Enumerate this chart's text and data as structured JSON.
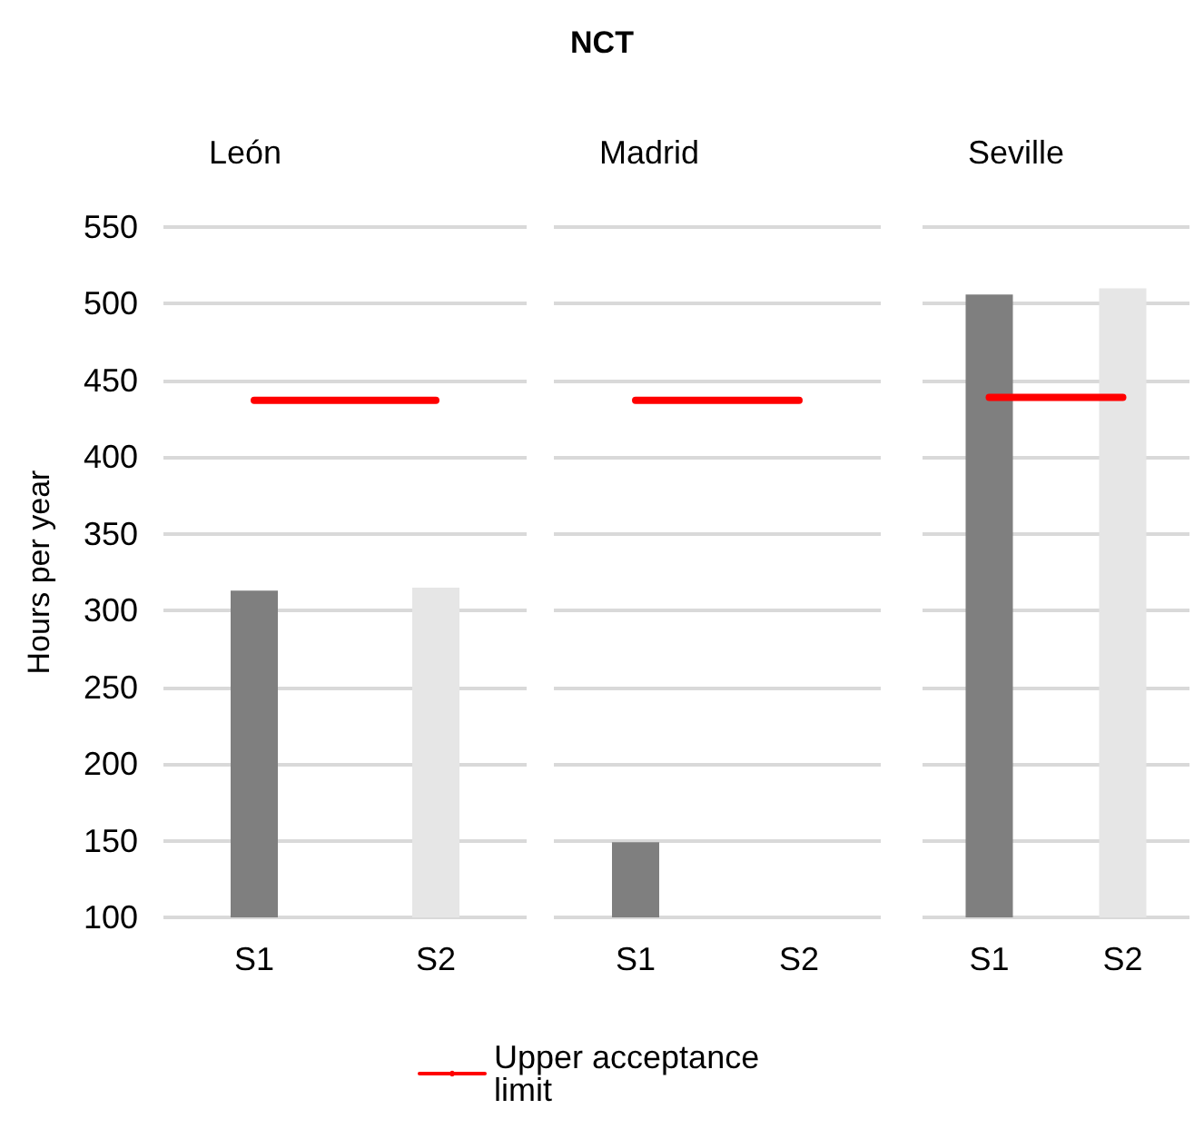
{
  "chart_data": [
    {
      "type": "bar",
      "subtitle": "León",
      "ylabel": "Hours per year",
      "categories": [
        "S1",
        "S2"
      ],
      "values": [
        313,
        315
      ],
      "colors": [
        "#7f7f7f",
        "#e6e6e6"
      ],
      "ylim": [
        100,
        550
      ],
      "yticks": [
        100,
        150,
        200,
        250,
        300,
        350,
        400,
        450,
        500,
        550
      ],
      "grid": "y",
      "legend": "bottom",
      "ref_lines": [
        {
          "axis": "y",
          "value": 437,
          "label": "Upper acceptance limit",
          "color": "#ff0000"
        }
      ]
    },
    {
      "type": "bar",
      "title": "NCT",
      "subtitle": "Madrid",
      "categories": [
        "S1",
        "S2"
      ],
      "values": [
        149,
        100
      ],
      "colors": [
        "#7f7f7f",
        "#e6e6e6"
      ],
      "ylim": [
        100,
        550
      ],
      "yticks": [
        100,
        150,
        200,
        250,
        300,
        350,
        400,
        450,
        500,
        550
      ],
      "grid": "y",
      "tick_labels": "x",
      "ref_lines": [
        {
          "axis": "y",
          "value": 437,
          "color": "#ff0000"
        }
      ]
    },
    {
      "type": "bar",
      "subtitle": "Seville",
      "categories": [
        "S1",
        "S2"
      ],
      "values": [
        506,
        510
      ],
      "colors": [
        "#7f7f7f",
        "#e6e6e6"
      ],
      "ylim": [
        100,
        550
      ],
      "yticks": [
        100,
        150,
        200,
        250,
        300,
        350,
        400,
        450,
        500,
        550
      ],
      "grid": "y",
      "tick_labels": "x",
      "ref_lines": [
        {
          "axis": "y",
          "value": 439,
          "color": "#ff0000"
        }
      ]
    }
  ]
}
